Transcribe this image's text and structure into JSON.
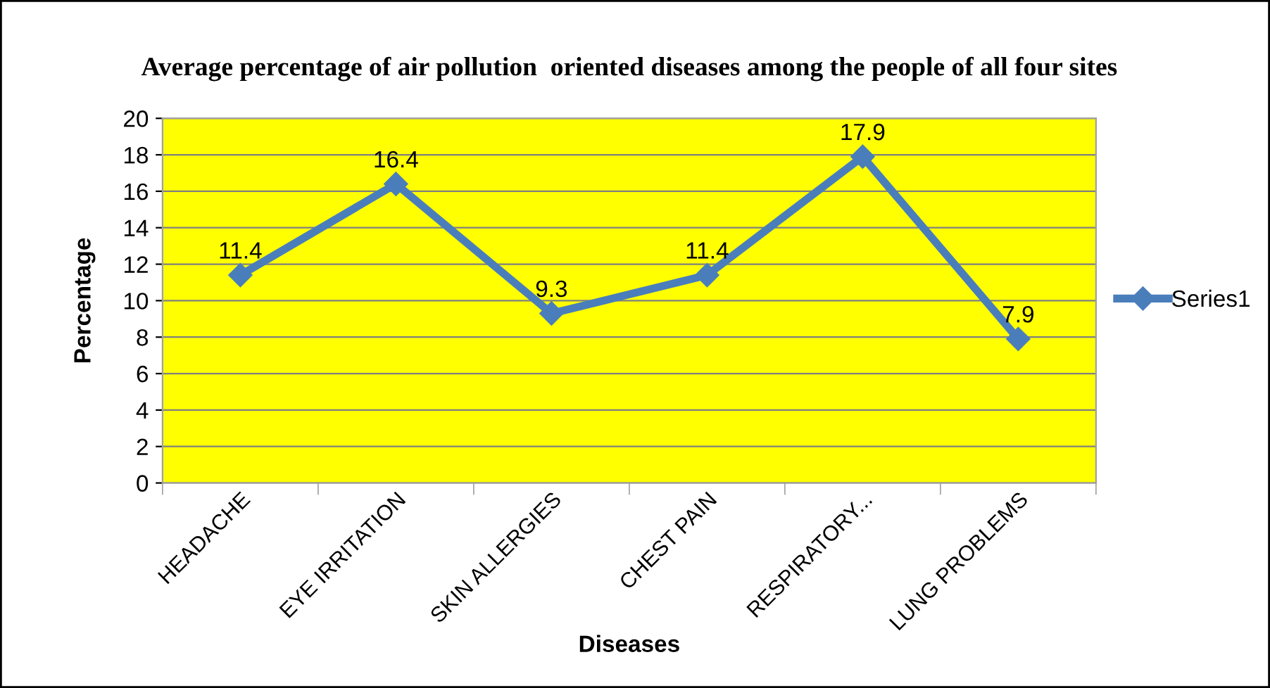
{
  "chart_data": {
    "type": "line",
    "title": "Average percentage of air pollution  oriented diseases among the people of all four sites",
    "xlabel": "Diseases",
    "ylabel": "Percentage",
    "categories": [
      "HEADACHE",
      "EYE IRRITATION",
      "SKIN ALLERGIES",
      "CHEST PAIN",
      "RESPIRATORY...",
      "LUNG PROBLEMS"
    ],
    "series": [
      {
        "name": "Series1",
        "color": "#4a7ebb",
        "values": [
          11.4,
          16.4,
          9.3,
          11.4,
          17.9,
          7.9
        ]
      }
    ],
    "ylim": [
      0,
      20
    ],
    "yticks": [
      0,
      2,
      4,
      6,
      8,
      10,
      12,
      14,
      16,
      18,
      20
    ],
    "grid": "y",
    "legend": "right",
    "marker": "diamond",
    "line_style": "solid",
    "data_labels": true
  }
}
